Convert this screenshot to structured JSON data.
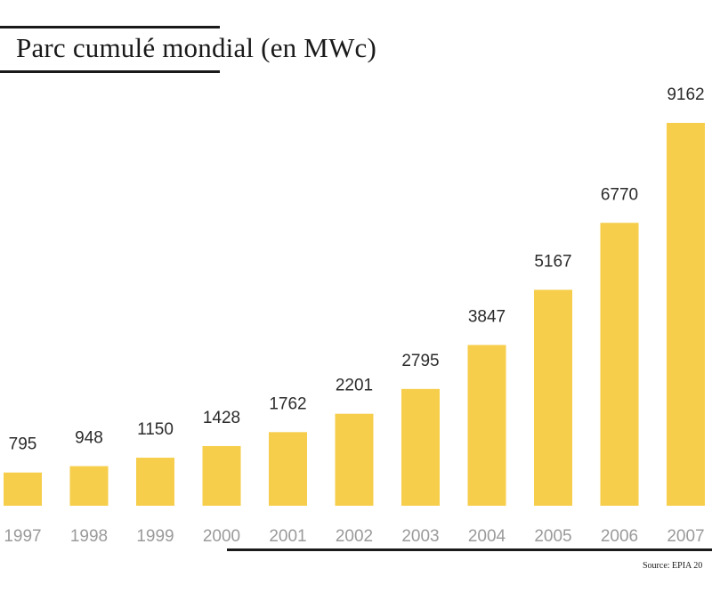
{
  "chart_data": {
    "type": "bar",
    "title": "Parc cumulé mondial (en MWc)",
    "categories": [
      "1997",
      "1998",
      "1999",
      "2000",
      "2001",
      "2002",
      "2003",
      "2004",
      "2005",
      "2006",
      "2007"
    ],
    "values": [
      795,
      948,
      1150,
      1428,
      1762,
      2201,
      2795,
      3847,
      5167,
      6770,
      9162
    ],
    "data_labels": [
      "795",
      "948",
      "1150",
      "1428",
      "1762",
      "2201",
      "2795",
      "3847",
      "5167",
      "6770",
      "9162"
    ],
    "xlabel": "",
    "ylabel": "",
    "ylim": [
      0,
      9162
    ],
    "grid": false,
    "legend": "none",
    "bar_color": "#f6ce4b",
    "source": "Source: EPIA 20"
  }
}
